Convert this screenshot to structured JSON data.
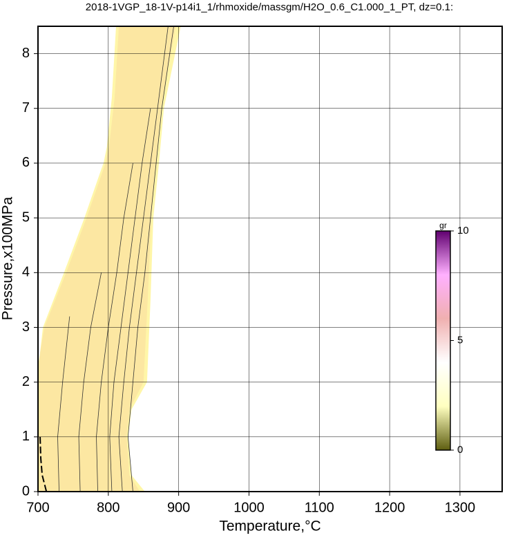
{
  "chart_data": {
    "type": "contour",
    "title": "2018-1VGP_18-1V-p14i1_1/rhmoxide/massgm/H2O_0.6_C1.000_1_PT, dz=0.1:",
    "x_label": "Temperature,°C",
    "y_label": "Pressure,x100MPa",
    "xlim": [
      700,
      1360
    ],
    "ylim": [
      0,
      8.5
    ],
    "xticks": [
      700,
      800,
      900,
      1000,
      1100,
      1200,
      1300
    ],
    "yticks": [
      0,
      1,
      2,
      3,
      4,
      5,
      6,
      7,
      8
    ],
    "grid": true,
    "regions": [
      {
        "color": "#fff6a8",
        "x": [
          700,
          852,
          833,
          828,
          833,
          855,
          860,
          864,
          872,
          879,
          903,
          811,
          805,
          798,
          790,
          793,
          766,
          737,
          707,
          700
        ],
        "y": [
          0,
          0,
          0.3,
          1,
          1.5,
          2,
          3.5,
          5,
          6,
          7,
          8.5,
          8.5,
          7.2,
          6.3,
          5.8,
          6,
          5,
          4,
          3,
          2.2
        ]
      },
      {
        "color": "#fce7a2",
        "x": [
          700,
          845,
          830,
          826,
          830,
          850,
          856,
          861,
          868,
          875,
          896,
          815,
          809,
          801,
          794,
          796,
          769,
          740,
          709,
          700
        ],
        "y": [
          0,
          0,
          0.3,
          1,
          1.5,
          2,
          3.5,
          5,
          6,
          7,
          8.5,
          8.5,
          7.2,
          6.3,
          5.9,
          6,
          5,
          4,
          3,
          2.3
        ]
      }
    ],
    "series": [
      {
        "color": "#333333",
        "x": [
          730,
          728,
          735,
          745
        ],
        "y": [
          0,
          1,
          2,
          3.2
        ]
      },
      {
        "color": "#333333",
        "x": [
          760,
          758,
          765,
          775,
          790
        ],
        "y": [
          0,
          1,
          2,
          3,
          4
        ]
      },
      {
        "color": "#333333",
        "x": [
          785,
          783,
          790,
          800,
          812,
          822,
          835
        ],
        "y": [
          0,
          1,
          2,
          3,
          4,
          5,
          6
        ]
      },
      {
        "color": "#333333",
        "x": [
          805,
          802,
          808,
          818,
          828,
          838,
          848,
          860
        ],
        "y": [
          0,
          1,
          2,
          3,
          4,
          5,
          6,
          7
        ]
      },
      {
        "color": "#333333",
        "x": [
          820,
          815,
          822,
          830,
          840,
          850,
          860,
          870,
          885
        ],
        "y": [
          0,
          1,
          2,
          3,
          4,
          5,
          6,
          7,
          8.5
        ]
      },
      {
        "color": "#333333",
        "x": [
          835,
          828,
          835,
          842,
          852,
          860,
          868,
          876,
          893
        ],
        "y": [
          0,
          1,
          2,
          3,
          4,
          5,
          6,
          7,
          8.5
        ]
      },
      {
        "color": "#000000",
        "dash": true,
        "x": [
          703,
          704,
          706,
          712
        ],
        "y": [
          1,
          0.6,
          0.3,
          0
        ]
      }
    ],
    "colorbar": {
      "label": "gr",
      "lim": [
        0,
        10
      ],
      "ticks": [
        0,
        5,
        10
      ],
      "colors": [
        "#5e5e10",
        "#ffffc0",
        "#ffffff",
        "#f0b0b0",
        "#ffb0ff",
        "#600070"
      ]
    }
  }
}
